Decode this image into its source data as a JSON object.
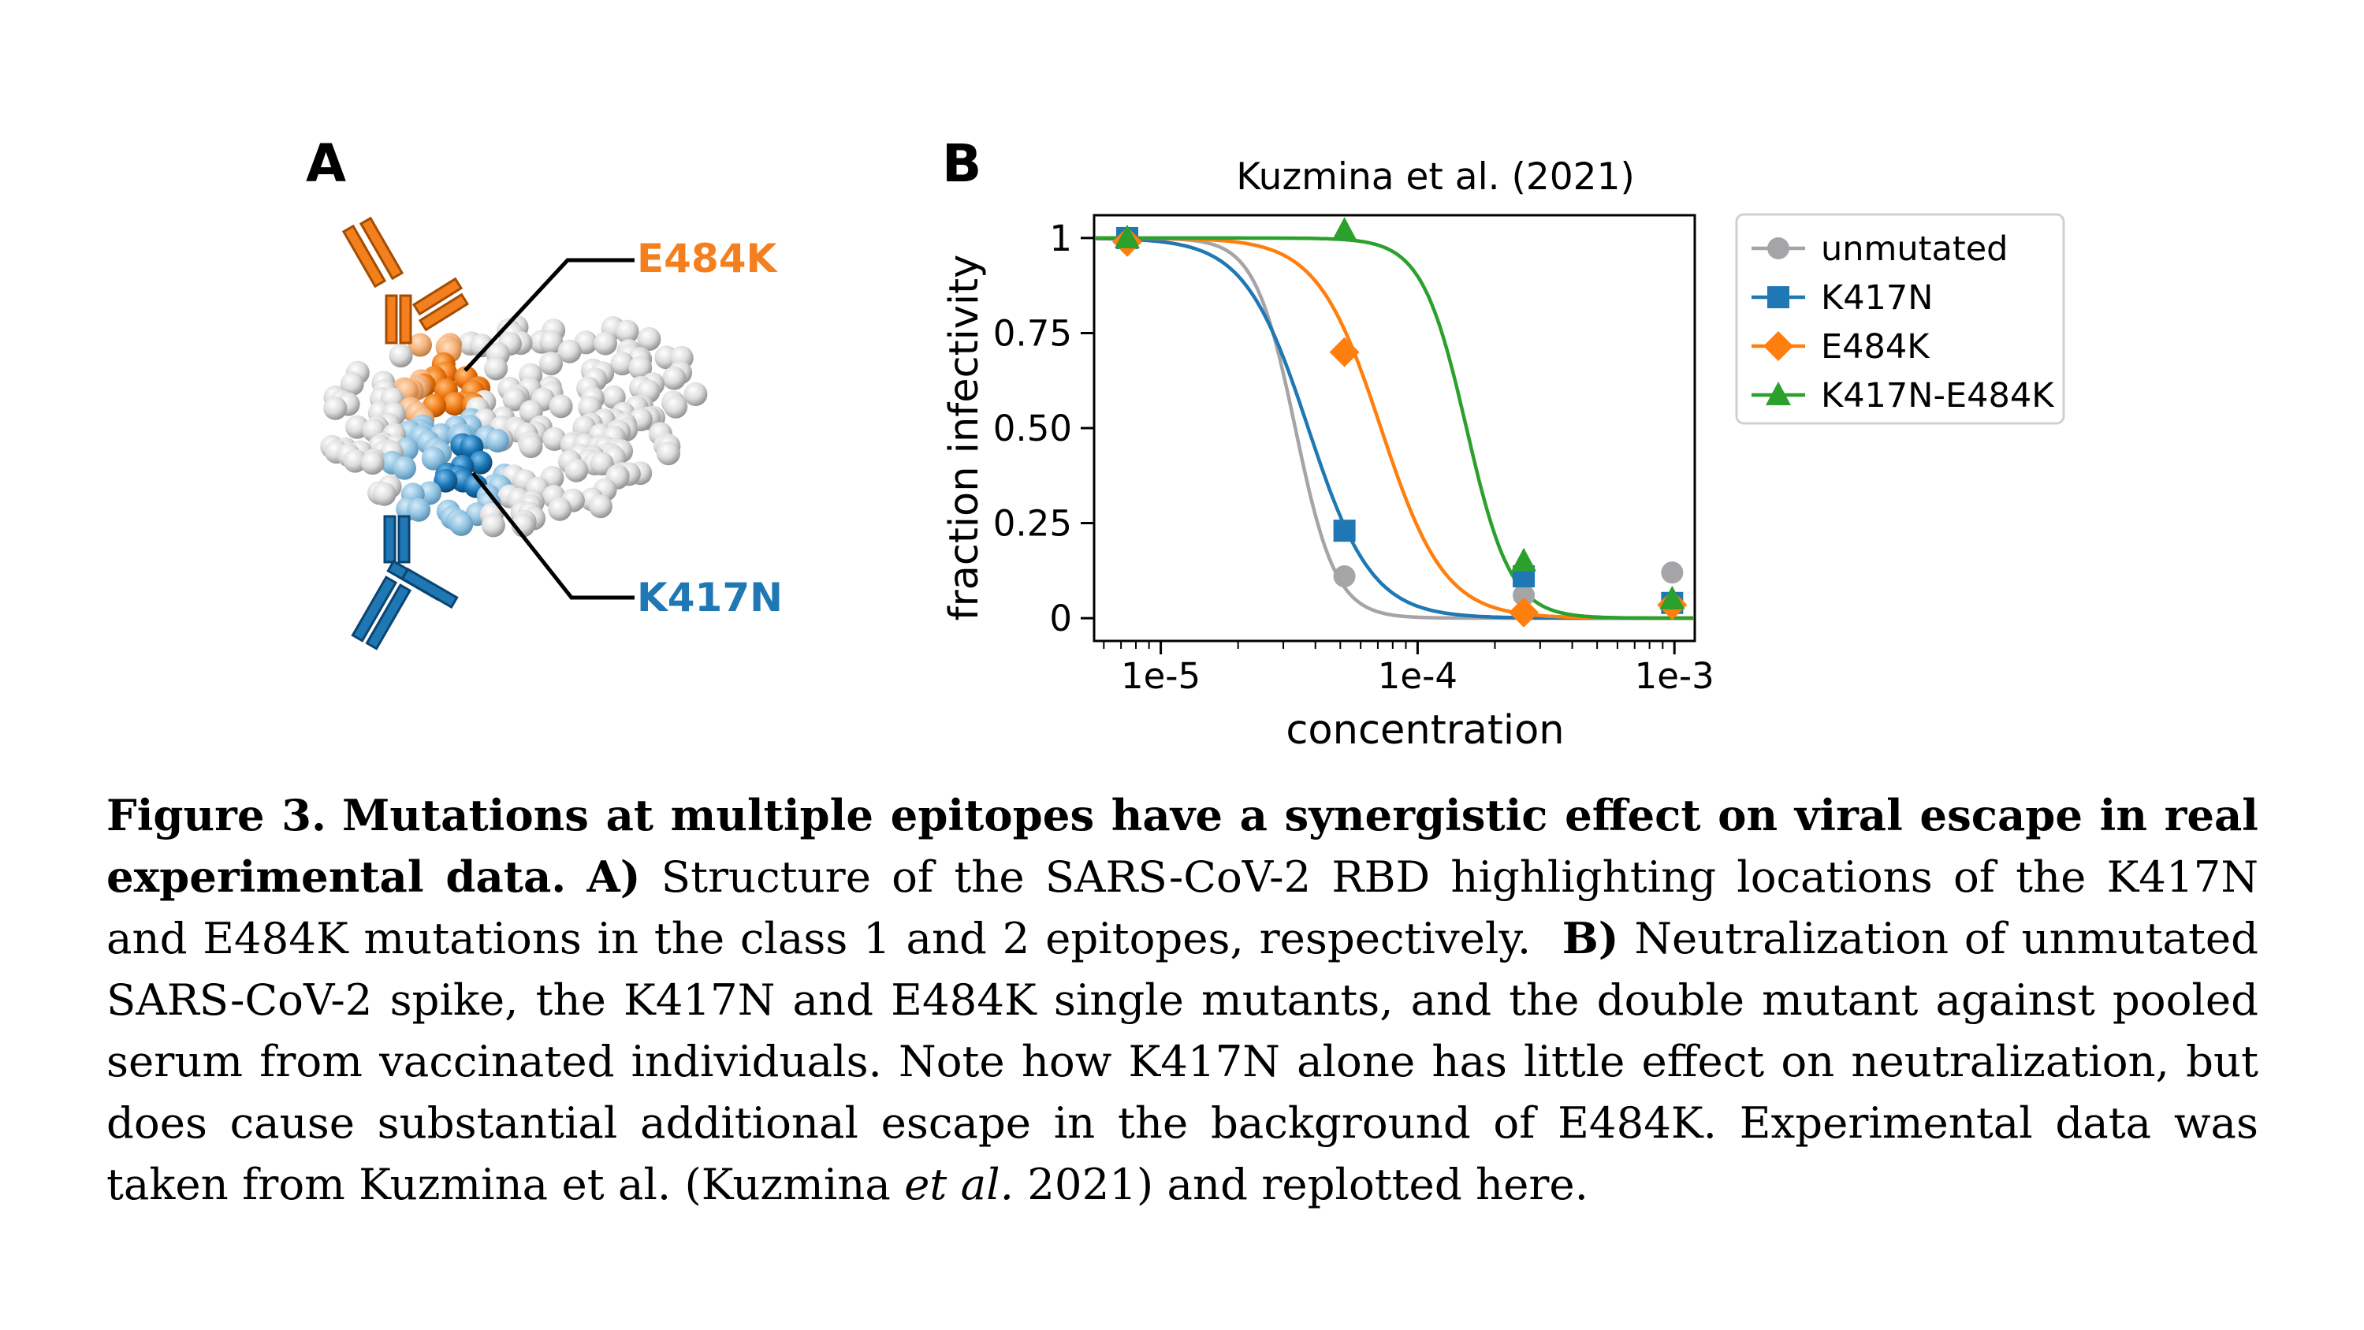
{
  "panel_a": {
    "label": "A",
    "labels": [
      {
        "text": "E484K",
        "color": "#f47f1f"
      },
      {
        "text": "K417N",
        "color": "#1f77b4"
      }
    ]
  },
  "panel_b": {
    "label": "B"
  },
  "chart_data": {
    "type": "scatter",
    "title": "Kuzmina et al. (2021)",
    "xlabel": "concentration",
    "ylabel": "fraction infectivity",
    "xscale": "log",
    "xlim": [
      5.5e-06,
      0.0012
    ],
    "ylim": [
      -0.06,
      1.06
    ],
    "xticks": [
      {
        "value": 1e-05,
        "label": "1e-5"
      },
      {
        "value": 0.0001,
        "label": "1e-4"
      },
      {
        "value": 0.001,
        "label": "1e-3"
      }
    ],
    "yticks": [
      {
        "value": 0,
        "label": "0"
      },
      {
        "value": 0.25,
        "label": "0.25"
      },
      {
        "value": 0.5,
        "label": "0.50"
      },
      {
        "value": 0.75,
        "label": "0.75"
      },
      {
        "value": 1,
        "label": "1"
      }
    ],
    "grid": false,
    "legend_position": "right",
    "x": [
      7.4e-06,
      5.19e-05,
      0.000259,
      0.00098
    ],
    "series": [
      {
        "name": "unmutated",
        "color": "#a5a5a8",
        "marker": "circle",
        "y": [
          1.0,
          0.11,
          0.06,
          0.12
        ],
        "fit": {
          "ic50": 3.34e-05,
          "hill": 5.5
        }
      },
      {
        "name": "K417N",
        "color": "#1f77b4",
        "marker": "square",
        "y": [
          1.0,
          0.23,
          0.11,
          0.04
        ],
        "fit": {
          "ic50": 3.75e-05,
          "hill": 3.5
        }
      },
      {
        "name": "E484K",
        "color": "#ff7f0e",
        "marker": "diamond",
        "y": [
          0.99,
          0.7,
          0.015,
          0.035
        ],
        "fit": {
          "ic50": 7.2e-05,
          "hill": 3.5
        }
      },
      {
        "name": "K417N-E484K",
        "color": "#2ca02c",
        "marker": "triangle",
        "y": [
          1.0,
          1.02,
          0.15,
          0.05
        ],
        "fit": {
          "ic50": 0.000155,
          "hill": 5.0
        }
      }
    ]
  },
  "caption": {
    "fig_label": "Figure 3.",
    "fig_title": "Mutations at multiple epitopes have a synergistic effect on viral escape in real experimental data.",
    "a_label": "A)",
    "a_text": "Structure of the SARS-CoV-2 RBD highlighting locations of the K417N and E484K mutations in the class 1 and 2 epitopes, respectively.",
    "b_label": "B)",
    "b_text_1": "Neutralization of unmutated SARS-CoV-2 spike, the K417N and E484K single mutants, and the double mutant against pooled serum from vaccinated individuals. Note how K417N alone has little effect on neutralization, but does cause substantial additional escape in the background of E484K. Experimental data was taken from Kuzmina et al. (Kuzmina",
    "b_italic": "et al.",
    "b_text_2": "2021) and replotted here."
  }
}
